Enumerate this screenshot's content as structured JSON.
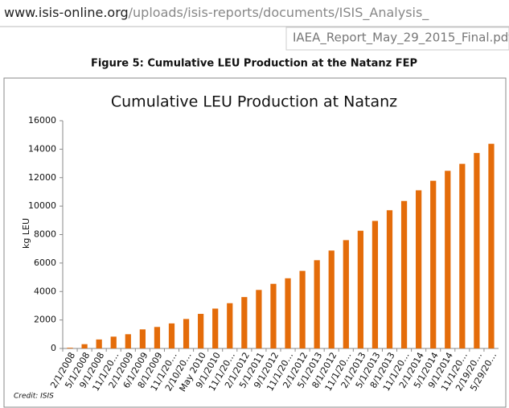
{
  "url_host": "www.isis-online.org",
  "url_path": "/uploads/isis-reports/documents/ISIS_Analysis_",
  "url_file": "IAEA_Report_May_29_2015_Final.pdf",
  "figure_caption": "Figure 5: Cumulative LEU Production at the Natanz FEP",
  "credit": "Credit: ISIS",
  "chart_data": {
    "type": "bar",
    "title": "Cumulative LEU Production at Natanz",
    "y_label": "kg LEU",
    "categories": [
      "2/1/2008",
      "5/1/2008",
      "9/1/2008",
      "11/1/20…",
      "2/1/2009",
      "6/1/2009",
      "8/1/2009",
      "11/1/20…",
      "2/10/20…",
      "May 2010",
      "9/1/2010",
      "11/1/20…",
      "2/1/2012",
      "5/1/2011",
      "9/1/2012",
      "11/1/20…",
      "2/1/2012",
      "5/1/2013",
      "8/1/2012",
      "11/1/20…",
      "2/1/2013",
      "5/1/2013",
      "8/1/2013",
      "11/1/20…",
      "2/1/2014",
      "5/1/2014",
      "9/1/2014",
      "11/1/20…",
      "2/19/20…",
      "5/29/20…"
    ],
    "values": [
      50,
      300,
      630,
      830,
      1000,
      1340,
      1510,
      1760,
      2070,
      2430,
      2800,
      3180,
      3610,
      4110,
      4540,
      4930,
      5450,
      6200,
      6880,
      7610,
      8270,
      8960,
      9710,
      10360,
      11110,
      11780,
      12480,
      12970,
      13730,
      14380
    ],
    "color": "#e46c0a",
    "ylim": [
      0,
      16000
    ],
    "yticks": [
      0,
      2000,
      4000,
      6000,
      8000,
      10000,
      12000,
      14000,
      16000
    ],
    "grid": false
  }
}
